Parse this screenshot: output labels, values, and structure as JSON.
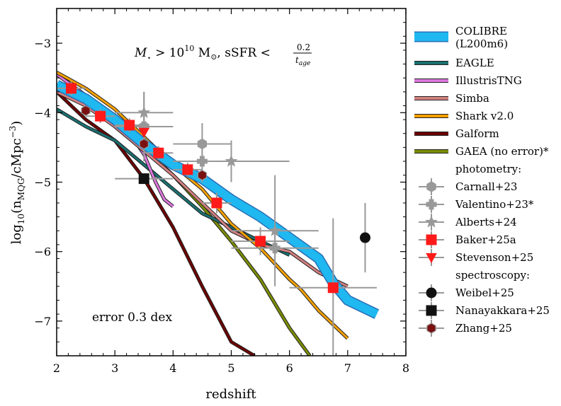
{
  "chart_data": {
    "type": "line",
    "xlabel": "redshift",
    "ylabel": "log10(nMQG/cMpc^-3)",
    "xlim": [
      2,
      8
    ],
    "ylim": [
      -7.5,
      -2.5
    ],
    "xticks": [
      2,
      3,
      4,
      5,
      6,
      7,
      8
    ],
    "yticks": [
      -3,
      -4,
      -5,
      -6,
      -7
    ],
    "xtick_labels": [
      "2",
      "3",
      "4",
      "5",
      "6",
      "7",
      "8"
    ],
    "ytick_labels": [
      "−3",
      "−4",
      "−5",
      "−6",
      "−7"
    ],
    "ylabel_parts": {
      "main": "log",
      "sub": "10",
      "open": "(n",
      "sub2": "MQG",
      "mid": "/cMpc",
      "sup": "−3",
      "close": ")"
    },
    "title_annotation": {
      "m": "M",
      "star": "⋆",
      "gt": " > 10",
      "exp": "10",
      "msun": " M",
      "sun": "⊙",
      "sep": ",  sSFR < ",
      "num": "0.2",
      "den": "t",
      "den_sub": "age"
    },
    "error_annotation": "error 0.3 dex",
    "series": [
      {
        "name": "Galform",
        "color": "#6b0000",
        "x": [
          2.0,
          2.5,
          3.0,
          3.5,
          4.0,
          4.5,
          5.0,
          5.4
        ],
        "y": [
          -3.7,
          -4.1,
          -4.4,
          -4.95,
          -5.65,
          -6.5,
          -7.3,
          -7.5
        ]
      },
      {
        "name": "GAEA (no error)*",
        "color": "#7a8c00",
        "x": [
          2.0,
          2.5,
          3.0,
          3.5,
          4.0,
          4.5,
          5.0,
          5.5,
          6.0,
          6.35
        ],
        "y": [
          -3.6,
          -3.85,
          -4.15,
          -4.5,
          -4.9,
          -5.35,
          -5.85,
          -6.4,
          -7.1,
          -7.5
        ]
      },
      {
        "name": "EAGLE",
        "color": "#1a7070",
        "x": [
          2.0,
          2.5,
          3.0,
          3.5,
          4.0,
          4.5,
          5.0,
          5.5,
          6.0
        ],
        "y": [
          -3.95,
          -4.2,
          -4.4,
          -4.75,
          -5.1,
          -5.45,
          -5.65,
          -5.85,
          -6.05
        ]
      },
      {
        "name": "IllustrisTNG",
        "color": "#dd77dd",
        "x": [
          2.0,
          2.5,
          3.0,
          3.3,
          3.5,
          3.7,
          3.85,
          4.0
        ],
        "y": [
          -3.45,
          -3.75,
          -4.05,
          -4.35,
          -4.6,
          -5.0,
          -5.25,
          -5.35
        ]
      },
      {
        "name": "Simba",
        "color": "#d48080",
        "x": [
          2.0,
          2.5,
          3.0,
          3.5,
          4.0,
          4.5,
          5.0,
          5.5,
          6.0,
          6.5,
          7.0
        ],
        "y": [
          -3.7,
          -3.9,
          -4.2,
          -4.55,
          -4.9,
          -5.3,
          -5.7,
          -5.9,
          -6.0,
          -6.3,
          -6.5
        ]
      },
      {
        "name": "Shark v2.0",
        "color": "#f5a000",
        "x": [
          2.0,
          2.5,
          3.0,
          3.5,
          4.0,
          4.5,
          5.0,
          5.5,
          6.0,
          6.2,
          6.5,
          7.0
        ],
        "y": [
          -3.42,
          -3.65,
          -3.95,
          -4.35,
          -4.75,
          -5.1,
          -5.6,
          -5.95,
          -6.4,
          -6.55,
          -6.85,
          -7.25
        ]
      },
      {
        "name": "COLIBRE (L200m6)",
        "color": "#1fb8f0",
        "edge": "#2a6fb5",
        "x": [
          2.0,
          2.5,
          3.0,
          3.5,
          4.0,
          4.5,
          5.0,
          5.5,
          6.0,
          6.5,
          6.75,
          7.0,
          7.5
        ],
        "y": [
          -3.6,
          -3.8,
          -4.1,
          -4.45,
          -4.75,
          -4.95,
          -5.25,
          -5.5,
          -5.8,
          -6.1,
          -6.45,
          -6.7,
          -6.9
        ]
      }
    ],
    "photometry_label": "photometry:",
    "spectroscopy_label": "spectroscopy:",
    "points": [
      {
        "name": "Carnall+23",
        "marker": "hexagon",
        "color": "#999999",
        "edge": "#999999",
        "data": [
          {
            "x": 3.5,
            "y": -4.2,
            "xerr": 0.5,
            "yerr": 0.25
          },
          {
            "x": 4.5,
            "y": -4.45,
            "xerr": 0.5,
            "yerr": 0.3
          }
        ]
      },
      {
        "name": "Valentino+23*",
        "marker": "plus",
        "color": "#999999",
        "edge": "#999999",
        "data": [
          {
            "x": 3.5,
            "y": -4.2,
            "xerr": 0.5,
            "yerr": 0.5
          },
          {
            "x": 4.5,
            "y": -4.7,
            "xerr": 0.5,
            "yerr": 0.3
          },
          {
            "x": 5.75,
            "y": -5.95,
            "xerr": 0.75,
            "yerr": 0.3
          }
        ]
      },
      {
        "name": "Alberts+24",
        "marker": "star",
        "color": "#999999",
        "edge": "#999999",
        "data": [
          {
            "x": 3.5,
            "y": -4.0,
            "xerr": 0.5,
            "yerr": 0.3
          },
          {
            "x": 5.0,
            "y": -4.7,
            "xerr": 1.0,
            "yerr": 0.3
          },
          {
            "x": 5.75,
            "y": -5.7,
            "xerr": 0.75,
            "yerr": 0.8
          }
        ]
      },
      {
        "name": "Baker+25a",
        "marker": "square",
        "color": "#ff1a1a",
        "edge": "#ff1a1a",
        "data": [
          {
            "x": 2.25,
            "y": -3.65,
            "xerr": 0.25,
            "yerr": 0.1
          },
          {
            "x": 2.75,
            "y": -4.05,
            "xerr": 0.25,
            "yerr": 0.1
          },
          {
            "x": 3.25,
            "y": -4.18,
            "xerr": 0.25,
            "yerr": 0.1
          },
          {
            "x": 3.75,
            "y": -4.58,
            "xerr": 0.25,
            "yerr": 0.1
          },
          {
            "x": 4.25,
            "y": -4.82,
            "xerr": 0.25,
            "yerr": 0.1
          },
          {
            "x": 4.75,
            "y": -5.3,
            "xerr": 0.25,
            "yerr": 0.15
          },
          {
            "x": 5.5,
            "y": -5.85,
            "xerr": 0.5,
            "yerr": 0.2
          },
          {
            "x": 6.75,
            "y": -6.52,
            "xerr": 0.75,
            "yerr": 1.0
          }
        ]
      },
      {
        "name": "Stevenson+25",
        "marker": "triangle-down",
        "color": "#ff1a1a",
        "edge": "#ff1a1a",
        "data": [
          {
            "x": 3.5,
            "y": -4.28,
            "xerr": 0.0,
            "yerr": 0.0
          }
        ]
      },
      {
        "name": "Weibel+25",
        "marker": "circle",
        "color": "#111111",
        "edge": "#111111",
        "data": [
          {
            "x": 7.3,
            "y": -5.8,
            "xerr": 0.0,
            "yerr": 0.5
          }
        ]
      },
      {
        "name": "Nanayakkara+25",
        "marker": "square",
        "color": "#111111",
        "edge": "#111111",
        "data": [
          {
            "x": 3.5,
            "y": -4.95,
            "xerr": 0.5,
            "yerr": 0.0
          }
        ]
      },
      {
        "name": "Zhang+25",
        "marker": "hexagon",
        "color": "#7a1010",
        "edge": "#999999",
        "data": [
          {
            "x": 2.5,
            "y": -3.97,
            "xerr": 0.0,
            "yerr": 0.0
          },
          {
            "x": 3.5,
            "y": -4.45,
            "xerr": 0.0,
            "yerr": 0.0
          },
          {
            "x": 4.5,
            "y": -4.9,
            "xerr": 0.0,
            "yerr": 0.0
          }
        ]
      }
    ]
  }
}
